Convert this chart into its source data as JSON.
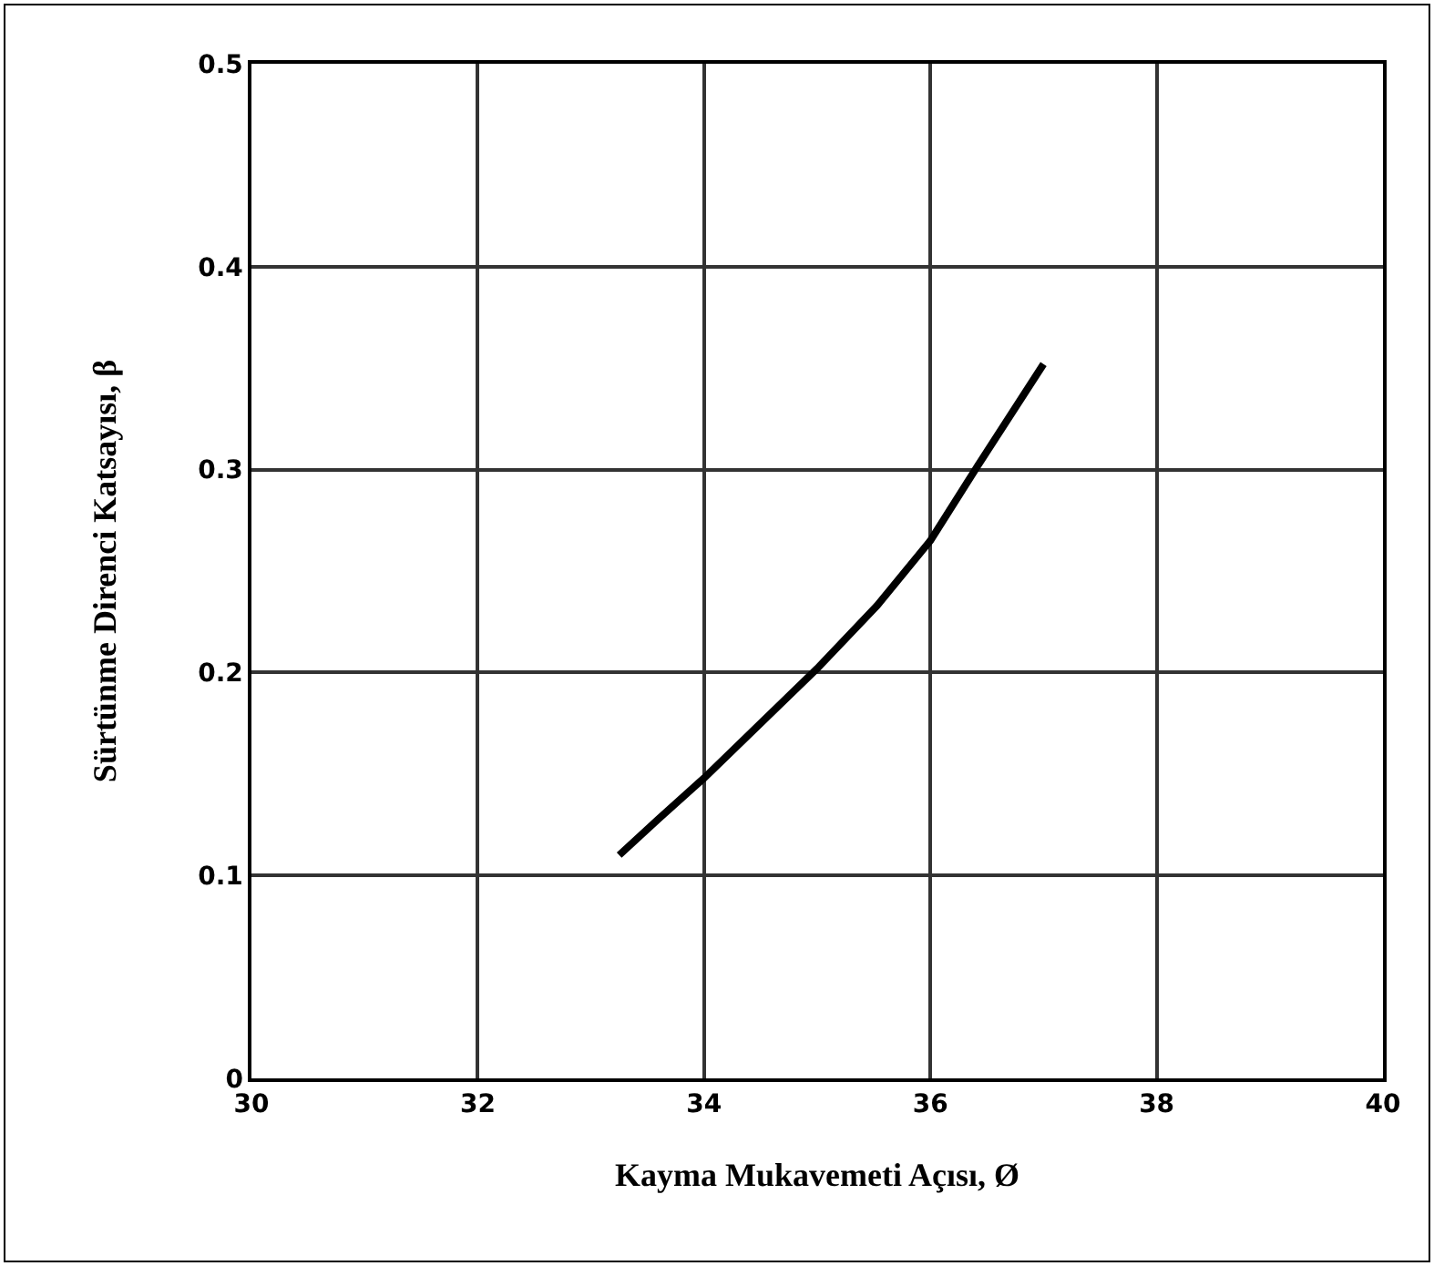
{
  "chart_data": {
    "type": "line",
    "xlabel": "Kayma Mukavemeti Açısı, Ø",
    "ylabel": "Sürtünme Direnci Katsayısı, β",
    "series": [
      {
        "color": "#000000",
        "x": [
          33.25,
          33.6,
          34.0,
          34.5,
          35.0,
          35.53,
          36.0,
          36.42,
          37.0
        ],
        "values": [
          0.11,
          0.128,
          0.148,
          0.175,
          0.202,
          0.233,
          0.265,
          0.302,
          0.352
        ]
      }
    ],
    "xlim": [
      30,
      40
    ],
    "xticks": [
      30,
      32,
      34,
      36,
      38,
      40
    ],
    "ylim": [
      0,
      0.5
    ],
    "yticks": [
      0,
      0.1,
      0.2,
      0.3,
      0.4,
      0.5
    ],
    "grid": true,
    "marker": "none",
    "line_style": "solid"
  }
}
